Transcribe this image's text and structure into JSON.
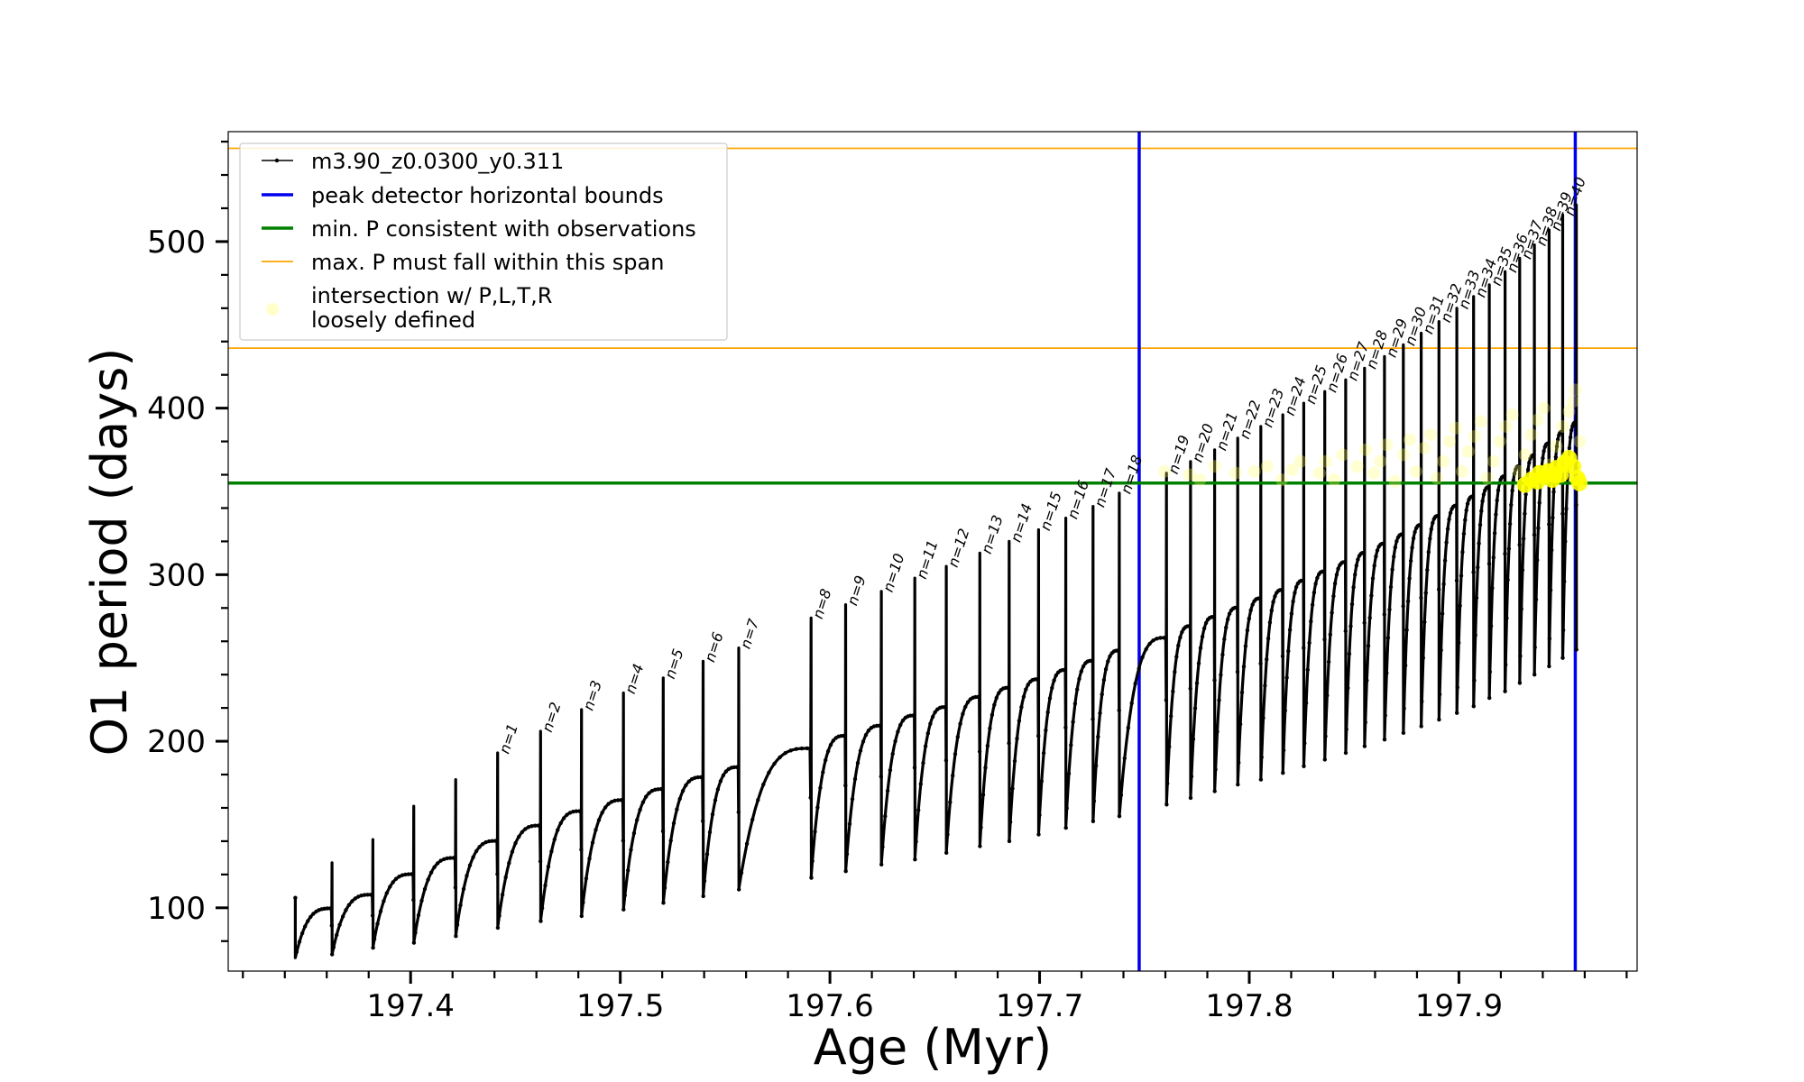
{
  "chart_data": {
    "type": "line",
    "xlabel": "Age (Myr)",
    "ylabel": "O1 period (days)",
    "xlim": [
      197.313,
      197.985
    ],
    "ylim": [
      62,
      566
    ],
    "xticks": [
      197.4,
      197.5,
      197.6,
      197.7,
      197.8,
      197.9
    ],
    "xtick_labels": [
      "197.4",
      "197.5",
      "197.6",
      "197.7",
      "197.8",
      "197.9"
    ],
    "yticks": [
      100,
      200,
      300,
      400,
      500
    ],
    "ytick_labels": [
      "100",
      "200",
      "300",
      "400",
      "500"
    ],
    "grid": false,
    "legend_position": "top-left",
    "legend": [
      {
        "label": "m3.90_z0.0300_y0.311",
        "color": "#000000",
        "style": "line-dots"
      },
      {
        "label": "peak detector horizontal bounds",
        "color": "#0000ee",
        "style": "thick-line"
      },
      {
        "label": "min. P consistent with observations",
        "color": "#008000",
        "style": "thick-line"
      },
      {
        "label": "max. P must fall within this span",
        "color": "#ffa500",
        "style": "thin-line"
      },
      {
        "label": "intersection w/ P,L,T,R",
        "label2": "loosely defined",
        "color": "#ffff66",
        "style": "dot"
      }
    ],
    "vertical_lines": {
      "color": "#0000ee",
      "x": [
        197.7475,
        197.9555
      ]
    },
    "min_p_line": {
      "color": "#008000",
      "y": 355
    },
    "max_p_lines": {
      "color": "#ffa500",
      "y": [
        436,
        556
      ]
    },
    "start": {
      "x": 197.345,
      "trough": 70,
      "peak": 106
    },
    "pulses": [
      {
        "label": "",
        "x": 197.3625,
        "peak": 127,
        "trough": 72
      },
      {
        "label": "",
        "x": 197.382,
        "peak": 141,
        "trough": 76
      },
      {
        "label": "",
        "x": 197.4015,
        "peak": 161,
        "trough": 79
      },
      {
        "label": "",
        "x": 197.4215,
        "peak": 177,
        "trough": 83
      },
      {
        "label": "n=1",
        "x": 197.4415,
        "peak": 193,
        "trough": 88
      },
      {
        "label": "n=2",
        "x": 197.462,
        "peak": 206,
        "trough": 92
      },
      {
        "label": "n=3",
        "x": 197.4815,
        "peak": 219,
        "trough": 95
      },
      {
        "label": "n=4",
        "x": 197.5015,
        "peak": 229,
        "trough": 99
      },
      {
        "label": "n=5",
        "x": 197.5205,
        "peak": 238,
        "trough": 103
      },
      {
        "label": "n=6",
        "x": 197.5395,
        "peak": 248,
        "trough": 107
      },
      {
        "label": "n=7",
        "x": 197.5565,
        "peak": 256,
        "trough": 111
      },
      {
        "label": "n=8",
        "x": 197.591,
        "peak": 274,
        "trough": 118
      },
      {
        "label": "n=9",
        "x": 197.6075,
        "peak": 282,
        "trough": 122
      },
      {
        "label": "n=10",
        "x": 197.6245,
        "peak": 290,
        "trough": 126
      },
      {
        "label": "n=11",
        "x": 197.6405,
        "peak": 298,
        "trough": 129
      },
      {
        "label": "n=12",
        "x": 197.6555,
        "peak": 305,
        "trough": 133
      },
      {
        "label": "n=13",
        "x": 197.6715,
        "peak": 313,
        "trough": 137
      },
      {
        "label": "n=14",
        "x": 197.6855,
        "peak": 320,
        "trough": 140
      },
      {
        "label": "n=15",
        "x": 197.6995,
        "peak": 327,
        "trough": 144
      },
      {
        "label": "n=16",
        "x": 197.7125,
        "peak": 334,
        "trough": 148
      },
      {
        "label": "n=17",
        "x": 197.7255,
        "peak": 341,
        "trough": 152
      },
      {
        "label": "n=18",
        "x": 197.738,
        "peak": 349,
        "trough": 155
      },
      {
        "label": "n=19",
        "x": 197.7605,
        "peak": 361,
        "trough": 162
      },
      {
        "label": "n=20",
        "x": 197.772,
        "peak": 368,
        "trough": 166
      },
      {
        "label": "n=21",
        "x": 197.7835,
        "peak": 375,
        "trough": 170
      },
      {
        "label": "n=22",
        "x": 197.7945,
        "peak": 382,
        "trough": 174
      },
      {
        "label": "n=23",
        "x": 197.8055,
        "peak": 389,
        "trough": 177
      },
      {
        "label": "n=24",
        "x": 197.816,
        "peak": 396,
        "trough": 181
      },
      {
        "label": "n=25",
        "x": 197.826,
        "peak": 403,
        "trough": 185
      },
      {
        "label": "n=26",
        "x": 197.836,
        "peak": 410,
        "trough": 189
      },
      {
        "label": "n=27",
        "x": 197.846,
        "peak": 417,
        "trough": 193
      },
      {
        "label": "n=28",
        "x": 197.855,
        "peak": 424,
        "trough": 197
      },
      {
        "label": "n=29",
        "x": 197.8645,
        "peak": 431,
        "trough": 201
      },
      {
        "label": "n=30",
        "x": 197.8735,
        "peak": 438,
        "trough": 205
      },
      {
        "label": "n=31",
        "x": 197.882,
        "peak": 445,
        "trough": 209
      },
      {
        "label": "n=32",
        "x": 197.8905,
        "peak": 452,
        "trough": 213
      },
      {
        "label": "n=33",
        "x": 197.899,
        "peak": 460,
        "trough": 217
      },
      {
        "label": "n=34",
        "x": 197.907,
        "peak": 467,
        "trough": 221
      },
      {
        "label": "n=35",
        "x": 197.9145,
        "peak": 474,
        "trough": 226
      },
      {
        "label": "n=36",
        "x": 197.922,
        "peak": 482,
        "trough": 230
      },
      {
        "label": "n=37",
        "x": 197.929,
        "peak": 490,
        "trough": 235
      },
      {
        "label": "n=38",
        "x": 197.936,
        "peak": 498,
        "trough": 240
      },
      {
        "label": "n=39",
        "x": 197.943,
        "peak": 507,
        "trough": 245
      },
      {
        "label": "n=40",
        "x": 197.9495,
        "peak": 516,
        "trough": 250
      }
    ],
    "end_pulse": {
      "x": 197.956,
      "peak": 522,
      "trough": 255
    },
    "intersection_loose": [
      [
        197.7595,
        362
      ],
      [
        197.7715,
        360
      ],
      [
        197.7765,
        357
      ],
      [
        197.7835,
        365
      ],
      [
        197.7935,
        361
      ],
      [
        197.8025,
        362
      ],
      [
        197.8085,
        365
      ],
      [
        197.8155,
        357
      ],
      [
        197.8205,
        363
      ],
      [
        197.8245,
        368
      ],
      [
        197.8335,
        361
      ],
      [
        197.8365,
        368
      ],
      [
        197.8405,
        357
      ],
      [
        197.8445,
        372
      ],
      [
        197.8515,
        365
      ],
      [
        197.8555,
        375
      ],
      [
        197.8595,
        361
      ],
      [
        197.8625,
        368
      ],
      [
        197.8655,
        378
      ],
      [
        197.8695,
        356
      ],
      [
        197.8735,
        372
      ],
      [
        197.8765,
        381
      ],
      [
        197.8795,
        362
      ],
      [
        197.8835,
        376
      ],
      [
        197.8865,
        384
      ],
      [
        197.8895,
        358
      ],
      [
        197.8925,
        368
      ],
      [
        197.8955,
        380
      ],
      [
        197.8985,
        388
      ],
      [
        197.9015,
        362
      ],
      [
        197.9045,
        374
      ],
      [
        197.9075,
        383
      ],
      [
        197.9105,
        392
      ],
      [
        197.9135,
        358
      ],
      [
        197.9165,
        368
      ],
      [
        197.9195,
        380
      ],
      [
        197.9225,
        389
      ],
      [
        197.9255,
        396
      ],
      [
        197.9285,
        362
      ],
      [
        197.9315,
        372
      ],
      [
        197.9345,
        384
      ],
      [
        197.9375,
        393
      ],
      [
        197.9405,
        400
      ],
      [
        197.9435,
        366
      ],
      [
        197.9465,
        377
      ],
      [
        197.9495,
        389
      ],
      [
        197.9525,
        398
      ],
      [
        197.9545,
        404
      ],
      [
        197.9555,
        411
      ],
      [
        197.9575,
        380
      ]
    ],
    "intersection_dense": [
      [
        197.9315,
        354
      ],
      [
        197.9345,
        357
      ],
      [
        197.9375,
        356
      ],
      [
        197.9405,
        359
      ],
      [
        197.9425,
        362
      ],
      [
        197.9445,
        357
      ],
      [
        197.9465,
        364
      ],
      [
        197.9485,
        360
      ],
      [
        197.9505,
        367
      ],
      [
        197.9525,
        370
      ],
      [
        197.9545,
        365
      ],
      [
        197.9565,
        358
      ],
      [
        197.9575,
        355
      ],
      [
        197.9385,
        361
      ],
      [
        197.9455,
        360
      ]
    ]
  }
}
